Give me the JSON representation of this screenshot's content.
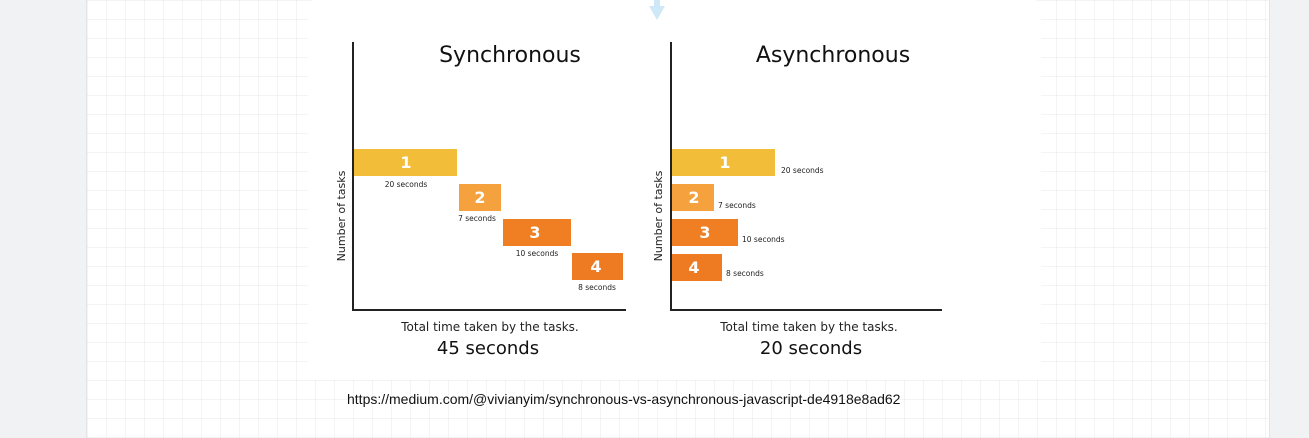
{
  "colors": {
    "task1": "#f2be3a",
    "task2": "#f4a13e",
    "task3": "#ef7f22",
    "task4": "#ee7b22",
    "axis": "#222222",
    "connector": "#cfe8f8"
  },
  "panels": {
    "synchronous": {
      "title": "Synchronous",
      "ylabel": "Number of tasks",
      "total_label": "Total time taken by the tasks.",
      "total_value": "45 seconds",
      "tasks": [
        {
          "label": "1",
          "duration": "20 seconds"
        },
        {
          "label": "2",
          "duration": "7 seconds"
        },
        {
          "label": "3",
          "duration": "10 seconds"
        },
        {
          "label": "4",
          "duration": "8 seconds"
        }
      ]
    },
    "asynchronous": {
      "title": "Asynchronous",
      "ylabel": "Number of tasks",
      "total_label": "Total time taken by the tasks.",
      "total_value": "20 seconds",
      "tasks": [
        {
          "label": "1",
          "duration": "20 seconds"
        },
        {
          "label": "2",
          "duration": "7 seconds"
        },
        {
          "label": "3",
          "duration": "10 seconds"
        },
        {
          "label": "4",
          "duration": "8 seconds"
        }
      ]
    }
  },
  "source": {
    "url": "https://medium.com/@vivianyim/synchronous-vs-asynchronous-javascript-de4918e8ad62"
  }
}
